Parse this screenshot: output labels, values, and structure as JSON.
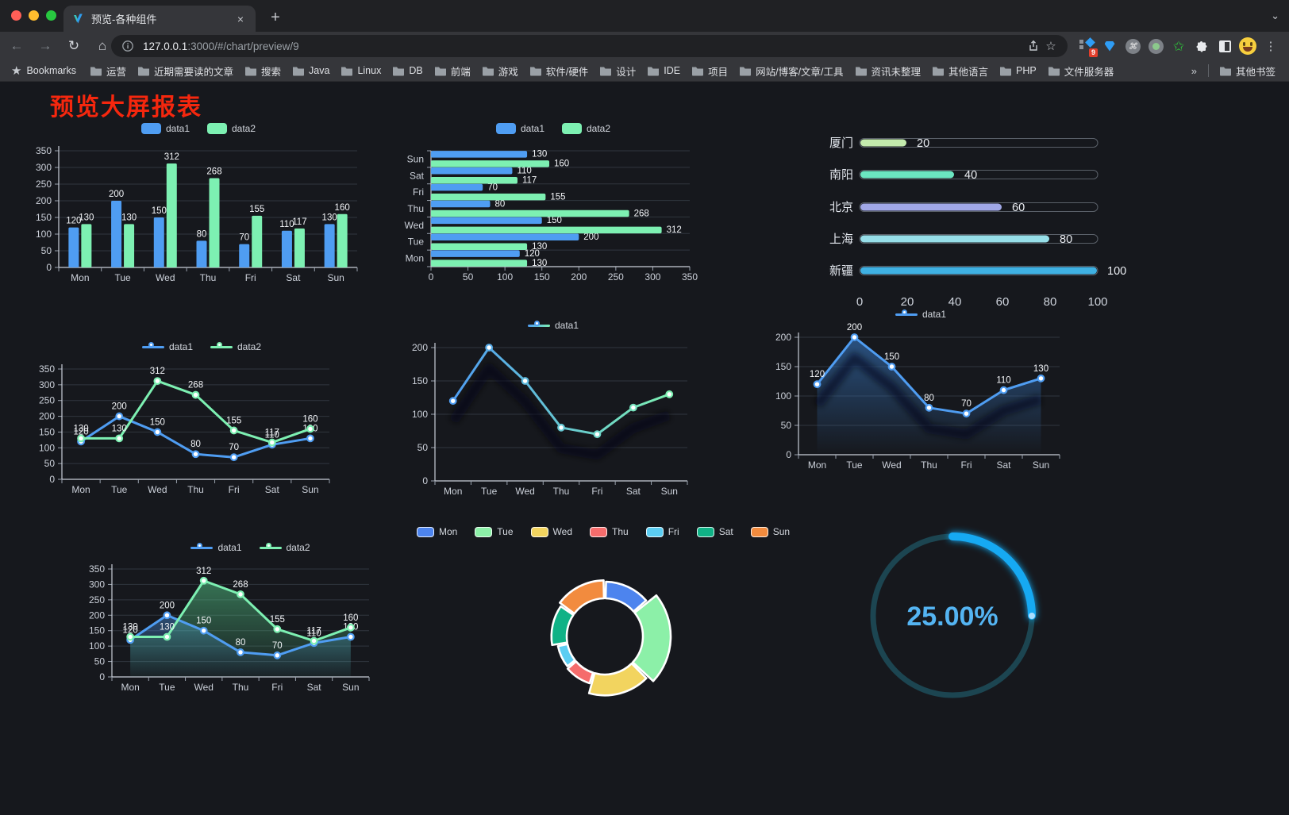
{
  "browser": {
    "tab_title": "预览-各种组件",
    "url": {
      "host": "127.0.0.1",
      "rest": ":3000/#/chart/preview/9"
    },
    "bookmarks_bar": {
      "bookmarks_label": "Bookmarks",
      "folders": [
        "运营",
        "近期需要读的文章",
        "搜索",
        "Java",
        "Linux",
        "DB",
        "前端",
        "游戏",
        "软件/硬件",
        "设计",
        "IDE",
        "项目",
        "网站/博客/文章/工具",
        "资讯未整理",
        "其他语言",
        "PHP",
        "文件服务器"
      ],
      "overflow_chevron": "»",
      "other_bookmarks": "其他书签"
    },
    "extension_badge": "9"
  },
  "page": {
    "title": "预览大屏报表",
    "title_color": "#f5270e"
  },
  "chart_data": [
    {
      "id": "bar-grouped",
      "type": "bar",
      "categories": [
        "Mon",
        "Tue",
        "Wed",
        "Thu",
        "Fri",
        "Sat",
        "Sun"
      ],
      "series": [
        {
          "name": "data1",
          "color": "#4f9df2",
          "values": [
            120,
            200,
            150,
            80,
            70,
            110,
            130
          ]
        },
        {
          "name": "data2",
          "color": "#7df0b2",
          "values": [
            130,
            130,
            312,
            268,
            155,
            117,
            160
          ]
        }
      ],
      "ylim": [
        0,
        350
      ],
      "ytick_step": 50,
      "legend_position": "top",
      "grid": true,
      "value_labels": true
    },
    {
      "id": "bar-horizontal",
      "type": "bar",
      "orientation": "horizontal",
      "first_category_at": "bottom",
      "categories": [
        "Mon",
        "Tue",
        "Wed",
        "Thu",
        "Fri",
        "Sat",
        "Sun"
      ],
      "series": [
        {
          "name": "data1",
          "color": "#4f9df2",
          "values": [
            120,
            200,
            150,
            80,
            70,
            110,
            130
          ]
        },
        {
          "name": "data2",
          "color": "#7df0b2",
          "values": [
            130,
            130,
            312,
            268,
            155,
            117,
            160
          ]
        }
      ],
      "xlim": [
        0,
        350
      ],
      "xtick_step": 50,
      "legend_position": "top",
      "value_labels": true
    },
    {
      "id": "progress-bars",
      "type": "bar",
      "subtype": "progress",
      "categories": [
        "厦门",
        "南阳",
        "北京",
        "上海",
        "新疆"
      ],
      "values": [
        20,
        40,
        60,
        80,
        100
      ],
      "colors": [
        "#c4ebad",
        "#6be6c1",
        "#a0a7e6",
        "#96dee8",
        "#3fb1e3"
      ],
      "xlim": [
        0,
        100
      ],
      "xticks": [
        0,
        20,
        40,
        60,
        80,
        100
      ],
      "value_labels": true
    },
    {
      "id": "line-two-series",
      "type": "line",
      "categories": [
        "Mon",
        "Tue",
        "Wed",
        "Thu",
        "Fri",
        "Sat",
        "Sun"
      ],
      "series": [
        {
          "name": "data1",
          "color": "#4f9df2",
          "values": [
            120,
            200,
            150,
            80,
            70,
            110,
            130
          ]
        },
        {
          "name": "data2",
          "color": "#7df0b2",
          "values": [
            130,
            130,
            312,
            268,
            155,
            117,
            160
          ]
        }
      ],
      "ylim": [
        0,
        350
      ],
      "ytick_step": 50,
      "legend_position": "top",
      "markers": true,
      "value_labels": true
    },
    {
      "id": "line-gradient",
      "type": "line",
      "categories": [
        "Mon",
        "Tue",
        "Wed",
        "Thu",
        "Fri",
        "Sat",
        "Sun"
      ],
      "series": [
        {
          "name": "data1",
          "gradient": [
            "#4f9df2",
            "#7df0b2"
          ],
          "values": [
            120,
            200,
            150,
            80,
            70,
            110,
            130
          ]
        }
      ],
      "ylim": [
        0,
        200
      ],
      "ytick_step": 50,
      "legend_position": "top",
      "markers": true,
      "value_labels": false,
      "shadow": true
    },
    {
      "id": "line-area",
      "type": "line",
      "categories": [
        "Mon",
        "Tue",
        "Wed",
        "Thu",
        "Fri",
        "Sat",
        "Sun"
      ],
      "series": [
        {
          "name": "data1",
          "color": "#4f9df2",
          "area": [
            "rgba(52,112,182,0.65)",
            "rgba(52,112,182,0)"
          ],
          "values": [
            120,
            200,
            150,
            80,
            70,
            110,
            130
          ]
        }
      ],
      "ylim": [
        0,
        200
      ],
      "ytick_step": 50,
      "legend_position": "top",
      "markers": true,
      "value_labels": true,
      "shadow": true
    },
    {
      "id": "line-two-areas",
      "type": "line",
      "categories": [
        "Mon",
        "Tue",
        "Wed",
        "Thu",
        "Fri",
        "Sat",
        "Sun"
      ],
      "series": [
        {
          "name": "data1",
          "color": "#4f9df2",
          "area": [
            "rgba(79,157,242,0.40)",
            "rgba(79,157,242,0.02)"
          ],
          "values": [
            120,
            200,
            150,
            80,
            70,
            110,
            130
          ]
        },
        {
          "name": "data2",
          "color": "#7df0b2",
          "area": [
            "rgba(90,215,145,0.48)",
            "rgba(90,215,145,0.03)"
          ],
          "values": [
            130,
            130,
            312,
            268,
            155,
            117,
            160
          ]
        }
      ],
      "ylim": [
        0,
        350
      ],
      "ytick_step": 50,
      "legend_position": "top",
      "markers": true,
      "value_labels": true
    },
    {
      "id": "rose-pie",
      "type": "pie",
      "rose": true,
      "donut": true,
      "categories": [
        "Mon",
        "Tue",
        "Wed",
        "Thu",
        "Fri",
        "Sat",
        "Sun"
      ],
      "values": [
        120,
        200,
        150,
        80,
        70,
        110,
        130
      ],
      "colors": [
        "#4d84ee",
        "#8cf0a8",
        "#f2d45f",
        "#f56c6c",
        "#5bcdf2",
        "#10b286",
        "#f28b3e"
      ],
      "legend_position": "top"
    },
    {
      "id": "gauge",
      "type": "gauge",
      "value": 25,
      "label": "25.00%",
      "color": "#14a9f2",
      "track_color": "#1c4551",
      "text_color": "#54b4f2"
    }
  ]
}
